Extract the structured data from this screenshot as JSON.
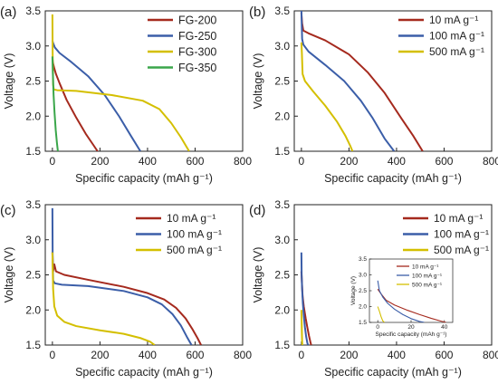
{
  "chart_data": [
    {
      "type": "line",
      "panel_label": "(a)",
      "xlabel": "Specific capacity (mAh g⁻¹)",
      "ylabel": "Voltage (V)",
      "xlim": [
        -30,
        800
      ],
      "ylim": [
        1.5,
        3.5
      ],
      "xticks": [
        "0",
        "200",
        "400",
        "600",
        "800"
      ],
      "yticks": [
        "1.5",
        "2.0",
        "2.5",
        "3.0",
        "3.5"
      ],
      "legend": "top-right",
      "series": [
        {
          "name": "FG-200",
          "color": "#a52a1e",
          "x": [
            0,
            3,
            8,
            15,
            30,
            60,
            100,
            140,
            170,
            190
          ],
          "y": [
            2.82,
            2.75,
            2.68,
            2.6,
            2.47,
            2.23,
            1.98,
            1.75,
            1.6,
            1.5
          ]
        },
        {
          "name": "FG-250",
          "color": "#3b5ea8",
          "x": [
            0,
            2,
            10,
            30,
            80,
            150,
            220,
            280,
            330,
            370
          ],
          "y": [
            3.08,
            3.05,
            2.98,
            2.9,
            2.77,
            2.57,
            2.3,
            2.0,
            1.72,
            1.5
          ]
        },
        {
          "name": "FG-300",
          "color": "#d4bf00",
          "x": [
            0,
            1,
            3,
            6,
            20,
            100,
            250,
            380,
            450,
            500,
            540,
            575
          ],
          "y": [
            3.45,
            2.9,
            2.45,
            2.38,
            2.37,
            2.36,
            2.3,
            2.22,
            2.1,
            1.9,
            1.7,
            1.5
          ]
        },
        {
          "name": "FG-350",
          "color": "#3aa64a",
          "x": [
            0,
            2,
            5,
            9,
            14,
            19,
            23
          ],
          "y": [
            2.85,
            2.6,
            2.3,
            2.05,
            1.8,
            1.62,
            1.5
          ]
        }
      ]
    },
    {
      "type": "line",
      "panel_label": "(b)",
      "xlabel": "Specific capacity (mAh g⁻¹)",
      "ylabel": "Voltage (V)",
      "xlim": [
        -30,
        800
      ],
      "ylim": [
        1.5,
        3.5
      ],
      "xticks": [
        "0",
        "200",
        "400",
        "600",
        "800"
      ],
      "yticks": [
        "1.5",
        "2.0",
        "2.5",
        "3.0",
        "3.5"
      ],
      "legend": "top-right",
      "series": [
        {
          "name": "10 mA g⁻¹",
          "color": "#a52a1e",
          "x": [
            0,
            3,
            8,
            30,
            100,
            200,
            280,
            350,
            420,
            470,
            510
          ],
          "y": [
            3.47,
            3.32,
            3.22,
            3.18,
            3.08,
            2.88,
            2.62,
            2.33,
            1.97,
            1.72,
            1.5
          ]
        },
        {
          "name": "100 mA g⁻¹",
          "color": "#3b5ea8",
          "x": [
            0,
            3,
            8,
            30,
            100,
            180,
            250,
            300,
            350,
            390
          ],
          "y": [
            3.5,
            3.1,
            3.02,
            2.92,
            2.73,
            2.5,
            2.22,
            1.97,
            1.68,
            1.5
          ]
        },
        {
          "name": "500 mA g⁻¹",
          "color": "#d4bf00",
          "x": [
            0,
            2,
            5,
            15,
            50,
            100,
            150,
            185,
            205,
            215
          ],
          "y": [
            3.05,
            2.9,
            2.6,
            2.5,
            2.35,
            2.15,
            1.92,
            1.72,
            1.58,
            1.5
          ]
        }
      ]
    },
    {
      "type": "line",
      "panel_label": "(c)",
      "xlabel": "Specific capacity (mAh g⁻¹)",
      "ylabel": "Voltage (V)",
      "xlim": [
        -30,
        800
      ],
      "ylim": [
        1.5,
        3.5
      ],
      "xticks": [
        "0",
        "200",
        "400",
        "600",
        "800"
      ],
      "yticks": [
        "1.5",
        "2.0",
        "2.5",
        "3.0",
        "3.5"
      ],
      "legend": "top-right",
      "series": [
        {
          "name": "10 mA g⁻¹",
          "color": "#a52a1e",
          "x": [
            0,
            3,
            8,
            15,
            50,
            150,
            300,
            400,
            470,
            520,
            560,
            590,
            610,
            625
          ],
          "y": [
            2.82,
            2.55,
            2.65,
            2.55,
            2.5,
            2.43,
            2.33,
            2.24,
            2.15,
            2.03,
            1.88,
            1.72,
            1.6,
            1.5
          ]
        },
        {
          "name": "100 mA g⁻¹",
          "color": "#3b5ea8",
          "x": [
            0,
            1,
            3,
            10,
            40,
            150,
            300,
            400,
            460,
            505,
            540,
            565,
            585
          ],
          "y": [
            3.45,
            2.8,
            2.42,
            2.38,
            2.36,
            2.34,
            2.27,
            2.18,
            2.08,
            1.94,
            1.78,
            1.62,
            1.5
          ]
        },
        {
          "name": "500 mA g⁻¹",
          "color": "#d4bf00",
          "x": [
            0,
            3,
            8,
            20,
            50,
            100,
            200,
            300,
            370,
            410,
            430
          ],
          "y": [
            2.82,
            2.3,
            2.05,
            1.92,
            1.83,
            1.77,
            1.71,
            1.66,
            1.6,
            1.55,
            1.5
          ]
        }
      ]
    },
    {
      "type": "line",
      "panel_label": "(d)",
      "xlabel": "Specific capacity (mAh g⁻¹)",
      "ylabel": "Voltage (V)",
      "xlim": [
        -30,
        800
      ],
      "ylim": [
        1.5,
        3.5
      ],
      "xticks": [
        "0",
        "200",
        "400",
        "600",
        "800"
      ],
      "yticks": [
        "1.5",
        "2.0",
        "2.5",
        "3.0",
        "3.5"
      ],
      "legend": "top-right",
      "series": [
        {
          "name": "10 mA g⁻¹",
          "color": "#a52a1e",
          "x": [
            0,
            2,
            5,
            10,
            18,
            25,
            32,
            38,
            41
          ],
          "y": [
            2.55,
            2.4,
            2.2,
            2.05,
            1.88,
            1.75,
            1.63,
            1.54,
            1.5
          ]
        },
        {
          "name": "100 mA g⁻¹",
          "color": "#3b5ea8",
          "x": [
            0,
            1,
            3,
            6,
            10,
            15,
            20,
            25,
            28
          ],
          "y": [
            2.82,
            2.5,
            2.3,
            2.1,
            1.92,
            1.75,
            1.62,
            1.53,
            1.5
          ]
        },
        {
          "name": "500 mA g⁻¹",
          "color": "#d4bf00",
          "x": [
            0,
            1,
            2,
            3,
            4
          ],
          "y": [
            2.0,
            1.85,
            1.68,
            1.55,
            1.5
          ]
        }
      ],
      "inset": {
        "xlabel": "Specific capacity (mAh g⁻¹)",
        "ylabel": "Voltage (V)",
        "xlim": [
          -5,
          45
        ],
        "ylim": [
          1.5,
          3.5
        ],
        "xticks": [
          "0",
          "20",
          "40"
        ],
        "yticks": [
          "1.5",
          "2.0",
          "2.5",
          "3.0",
          "3.5"
        ],
        "legend": "top-right"
      }
    }
  ]
}
